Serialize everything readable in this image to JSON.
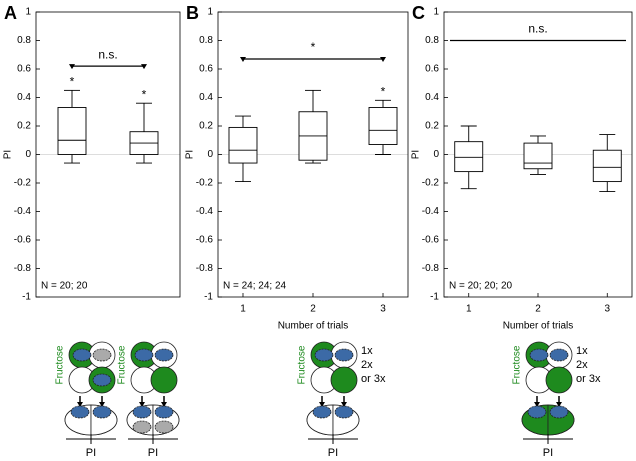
{
  "chart_data": [
    {
      "type": "box",
      "panel": "A",
      "categories": [
        null,
        null
      ],
      "boxes": [
        {
          "low": -0.06,
          "q1": 0,
          "median": 0.1,
          "q3": 0.33,
          "high": 0.45
        },
        {
          "low": -0.06,
          "q1": 0,
          "median": 0.08,
          "q3": 0.16,
          "high": 0.36
        }
      ],
      "marks": [
        "*",
        "*"
      ],
      "bracket": {
        "label": "n.s.",
        "y": 0.62,
        "ends": true
      },
      "note": "N = 20; 20",
      "ylabel": "PI",
      "ylim": [
        -1,
        1
      ],
      "yticks": [
        -1,
        -0.8,
        -0.6,
        -0.4,
        -0.2,
        0,
        0.2,
        0.4,
        0.6,
        0.8,
        1
      ],
      "zero_line": true
    },
    {
      "type": "box",
      "panel": "B",
      "categories": [
        "1",
        "2",
        "3"
      ],
      "xlabel": "Number of trials",
      "boxes": [
        {
          "low": -0.19,
          "q1": -0.06,
          "median": 0.03,
          "q3": 0.19,
          "high": 0.27
        },
        {
          "low": -0.06,
          "q1": -0.04,
          "median": 0.13,
          "q3": 0.3,
          "high": 0.45
        },
        {
          "low": 0,
          "q1": 0.07,
          "median": 0.17,
          "q3": 0.33,
          "high": 0.38
        }
      ],
      "marks": [
        null,
        null,
        "*"
      ],
      "bracket": {
        "label": "*",
        "y": 0.67,
        "ends": true
      },
      "note": "N = 24; 24; 24",
      "ylabel": "PI",
      "ylim": [
        -1,
        1
      ],
      "yticks": [
        -1,
        -0.8,
        -0.6,
        -0.4,
        -0.2,
        0,
        0.2,
        0.4,
        0.6,
        0.8,
        1
      ],
      "zero_line": true
    },
    {
      "type": "box",
      "panel": "C",
      "categories": [
        "1",
        "2",
        "3"
      ],
      "xlabel": "Number of trials",
      "boxes": [
        {
          "low": -0.24,
          "q1": -0.12,
          "median": -0.02,
          "q3": 0.09,
          "high": 0.2
        },
        {
          "low": -0.14,
          "q1": -0.1,
          "median": -0.06,
          "q3": 0.08,
          "high": 0.13
        },
        {
          "low": -0.26,
          "q1": -0.19,
          "median": -0.09,
          "q3": 0.03,
          "high": 0.14
        }
      ],
      "marks": [
        null,
        null,
        null
      ],
      "bracket": {
        "label": "n.s.",
        "y": 0.8,
        "ends": false
      },
      "note": "N = 20; 20; 20",
      "ylabel": "PI",
      "ylim": [
        -1,
        1
      ],
      "yticks": [
        -1,
        -0.8,
        -0.6,
        -0.4,
        -0.2,
        0,
        0.2,
        0.4,
        0.6,
        0.8,
        1
      ],
      "zero_line": true
    }
  ],
  "diagrams": [
    {
      "label": "Fructose",
      "readout": "PI"
    },
    {
      "label": "Fructose",
      "readout": "PI"
    },
    {
      "label": "Fructose",
      "readout": "PI",
      "trials": [
        "1x",
        "2x",
        "or 3x"
      ]
    },
    {
      "label": "Fructose",
      "readout": "PI",
      "trials": [
        "1x",
        "2x",
        "or 3x"
      ]
    }
  ]
}
